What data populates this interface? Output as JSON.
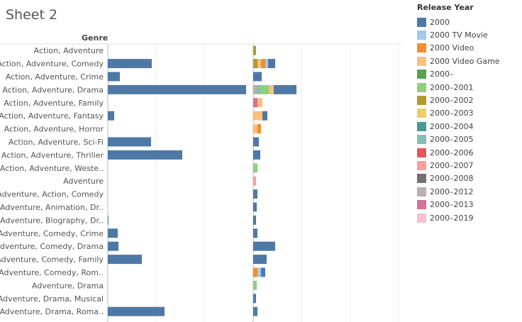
{
  "sheet_title": "Sheet 2",
  "legend_title": "Release Year",
  "chart_data": {
    "type": "bar",
    "row_header": "Genre",
    "categories": [
      "Action, Adventure",
      "Action, Adventure, Comedy",
      "Action, Adventure, Crime",
      "Action, Adventure, Drama",
      "Action, Adventure, Family",
      "Action, Adventure, Fantasy",
      "Action, Adventure, Horror",
      "Action, Adventure, Sci-Fi",
      "Action, Adventure, Thriller",
      "Action, Adventure, Weste..",
      "Adventure",
      "Adventure, Action, Comedy",
      "Adventure, Animation, Dr..",
      "Adventure, Biography, Dr..",
      "Adventure, Comedy, Crime",
      "Adventure, Comedy, Drama",
      "Adventure, Comedy, Family",
      "Adventure, Comedy, Rom..",
      "Adventure, Drama",
      "Adventure, Drama, Musical",
      "Adventure, Drama, Roma.."
    ],
    "left_values": [
      0,
      62,
      17,
      195,
      0,
      9,
      0,
      61,
      105,
      0,
      0,
      0,
      0,
      1,
      14,
      15,
      48,
      0,
      0,
      0,
      80
    ],
    "left_xlim": [
      0,
      410
    ],
    "right_xlim": [
      0,
      205
    ],
    "right_series_order": [
      "2000",
      "2000 TV Movie",
      "2000 Video",
      "2000 Video Game",
      "2000–",
      "2000–2001",
      "2000–2002",
      "2000–2003",
      "2000–2004",
      "2000–2005",
      "2000–2006",
      "2000–2007",
      "2000–2008",
      "2000–2012",
      "2000–2013",
      "2000–2019"
    ],
    "right_stacks": [
      [
        {
          "s": "2000–2002",
          "v": 4
        }
      ],
      [
        {
          "s": "2000–2002",
          "v": 6
        },
        {
          "s": "2000 Video Game",
          "v": 5
        },
        {
          "s": "2000 Video",
          "v": 6
        },
        {
          "s": "2000 TV Movie",
          "v": 4
        },
        {
          "s": "2000",
          "v": 10
        }
      ],
      [
        {
          "s": "2000",
          "v": 12
        }
      ],
      [
        {
          "s": "2000–2012",
          "v": 5
        },
        {
          "s": "2000–2005",
          "v": 5
        },
        {
          "s": "2000–2001",
          "v": 12
        },
        {
          "s": "2000 Video Game",
          "v": 7
        },
        {
          "s": "2000",
          "v": 32
        }
      ],
      [
        {
          "s": "2000–2013",
          "v": 6
        },
        {
          "s": "2000 Video Game",
          "v": 7
        }
      ],
      [
        {
          "s": "2000 Video Game",
          "v": 13
        },
        {
          "s": "2000",
          "v": 7
        }
      ],
      [
        {
          "s": "2000 Video Game",
          "v": 6
        },
        {
          "s": "2000 Video",
          "v": 5
        }
      ],
      [
        {
          "s": "2000",
          "v": 8
        }
      ],
      [
        {
          "s": "2000",
          "v": 10
        }
      ],
      [
        {
          "s": "2000–2001",
          "v": 6
        }
      ],
      [
        {
          "s": "2000–2007",
          "v": 4
        }
      ],
      [
        {
          "s": "2000",
          "v": 6
        }
      ],
      [
        {
          "s": "2000",
          "v": 5
        }
      ],
      [
        {
          "s": "2000",
          "v": 4
        }
      ],
      [
        {
          "s": "2000",
          "v": 6
        }
      ],
      [
        {
          "s": "2000",
          "v": 31
        }
      ],
      [
        {
          "s": "2000",
          "v": 19
        }
      ],
      [
        {
          "s": "2000 Video",
          "v": 6
        },
        {
          "s": "2000 TV Movie",
          "v": 5
        },
        {
          "s": "2000",
          "v": 6
        }
      ],
      [
        {
          "s": "2000–2001",
          "v": 5
        }
      ],
      [
        {
          "s": "2000",
          "v": 4
        }
      ],
      [
        {
          "s": "2000",
          "v": 6
        }
      ]
    ],
    "legend": [
      {
        "name": "2000",
        "color": "#4e79a7"
      },
      {
        "name": "2000 TV Movie",
        "color": "#a0cbe8"
      },
      {
        "name": "2000 Video",
        "color": "#f28e2b"
      },
      {
        "name": "2000 Video Game",
        "color": "#ffbe7d"
      },
      {
        "name": "2000–",
        "color": "#59a14f"
      },
      {
        "name": "2000–2001",
        "color": "#8cd17d"
      },
      {
        "name": "2000–2002",
        "color": "#b6992d"
      },
      {
        "name": "2000–2003",
        "color": "#f1ce63"
      },
      {
        "name": "2000–2004",
        "color": "#499894"
      },
      {
        "name": "2000–2005",
        "color": "#86bcb6"
      },
      {
        "name": "2000–2006",
        "color": "#e15759"
      },
      {
        "name": "2000–2007",
        "color": "#ff9d9a"
      },
      {
        "name": "2000–2008",
        "color": "#79706e"
      },
      {
        "name": "2000–2012",
        "color": "#bab0ac"
      },
      {
        "name": "2000–2013",
        "color": "#d37295"
      },
      {
        "name": "2000–2019",
        "color": "#fabfd2"
      }
    ]
  }
}
